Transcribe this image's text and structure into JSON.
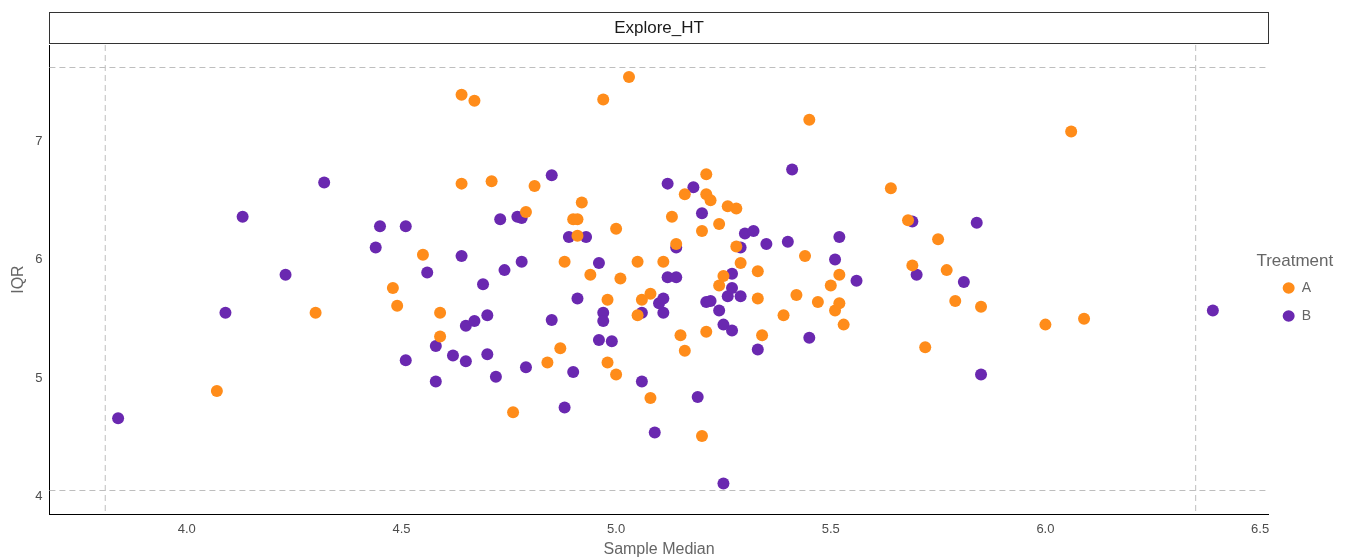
{
  "chart_data": {
    "type": "scatter",
    "title": "Explore_HT",
    "xlabel": "Sample Median",
    "ylabel": "IQR",
    "legend_title": "Treatment",
    "legend": "right",
    "grid": false,
    "marker": "circle",
    "xlim": [
      3.68,
      6.52
    ],
    "xticks": [
      {
        "value": 4,
        "label": "4.0"
      },
      4.5,
      {
        "value": 5,
        "label": "5.0"
      },
      5.5,
      {
        "value": 6,
        "label": "6.0"
      },
      6.5
    ],
    "ylim": [
      3.85,
      7.81
    ],
    "yticks": [
      4,
      5,
      6,
      7
    ],
    "ref_lines": [
      {
        "axis": "x",
        "value": 3.81,
        "line_style": "dashed",
        "color": "#bebebe"
      },
      {
        "axis": "x",
        "value": 6.35,
        "line_style": "dashed",
        "color": "#bebebe"
      },
      {
        "axis": "y",
        "value": 7.62,
        "line_style": "dashed",
        "color": "#bebebe"
      },
      {
        "axis": "y",
        "value": 4.05,
        "line_style": "dashed",
        "color": "#bebebe"
      }
    ],
    "series": [
      {
        "name": "A",
        "color": "#ff8c1a",
        "x": [
          4.07,
          4.3,
          4.48,
          4.49,
          4.55,
          4.59,
          4.59,
          4.64,
          4.67,
          4.64,
          4.71,
          4.79,
          4.81,
          4.76,
          4.84,
          4.87,
          4.88,
          4.9,
          4.92,
          4.91,
          4.91,
          4.94,
          4.97,
          5.03,
          4.98,
          4.98,
          5.0,
          5.0,
          5.01,
          5.05,
          5.05,
          5.06,
          5.08,
          5.08,
          5.11,
          5.13,
          5.14,
          5.15,
          5.16,
          5.16,
          5.2,
          5.21,
          5.21,
          5.22,
          5.2,
          5.21,
          5.24,
          5.24,
          5.25,
          5.26,
          5.28,
          5.28,
          5.29,
          5.33,
          5.33,
          5.34,
          5.45,
          5.42,
          5.39,
          5.51,
          5.5,
          5.52,
          5.53,
          5.52,
          5.47,
          5.44,
          5.64,
          5.68,
          5.69,
          5.75,
          5.77,
          5.79,
          5.72,
          5.85,
          6.0,
          6.09,
          6.06
        ],
        "values": [
          4.89,
          5.55,
          5.76,
          5.61,
          6.04,
          5.55,
          5.35,
          7.39,
          7.34,
          6.64,
          6.66,
          6.4,
          6.62,
          4.71,
          5.13,
          5.25,
          5.98,
          6.34,
          6.48,
          6.2,
          6.34,
          5.87,
          7.35,
          7.54,
          5.66,
          5.13,
          6.26,
          5.03,
          5.84,
          5.98,
          5.53,
          5.66,
          5.71,
          4.83,
          5.98,
          6.36,
          6.13,
          5.36,
          5.23,
          6.55,
          6.24,
          6.55,
          6.72,
          6.5,
          4.51,
          5.39,
          5.78,
          6.3,
          5.86,
          6.45,
          6.43,
          6.11,
          5.97,
          5.67,
          5.9,
          5.36,
          7.18,
          5.7,
          5.53,
          5.57,
          5.78,
          5.63,
          5.45,
          5.87,
          5.64,
          6.03,
          6.6,
          6.33,
          5.95,
          6.17,
          5.91,
          5.65,
          5.26,
          5.6,
          5.45,
          5.5,
          7.08
        ]
      },
      {
        "name": "B",
        "color": "#6a28b0",
        "x": [
          3.84,
          4.09,
          4.13,
          4.23,
          4.32,
          4.44,
          4.45,
          4.51,
          4.51,
          4.56,
          4.58,
          4.58,
          4.62,
          4.65,
          4.64,
          4.65,
          4.67,
          4.69,
          4.7,
          4.7,
          4.72,
          4.73,
          4.74,
          4.77,
          4.78,
          4.78,
          4.79,
          4.85,
          4.85,
          4.88,
          4.89,
          4.93,
          4.96,
          4.91,
          4.9,
          4.96,
          4.99,
          4.97,
          4.97,
          5.06,
          5.06,
          5.09,
          5.11,
          5.1,
          5.11,
          5.12,
          5.14,
          5.14,
          5.12,
          5.18,
          5.2,
          5.19,
          5.21,
          5.22,
          5.24,
          5.25,
          5.27,
          5.26,
          5.27,
          5.27,
          5.29,
          5.29,
          5.3,
          5.32,
          5.35,
          5.4,
          5.41,
          5.33,
          5.25,
          5.45,
          5.52,
          5.51,
          5.56,
          5.69,
          5.7,
          5.81,
          5.84,
          5.85,
          6.39
        ],
        "values": [
          4.66,
          5.55,
          6.36,
          5.87,
          6.65,
          6.1,
          6.28,
          6.28,
          5.15,
          5.89,
          4.97,
          5.27,
          5.19,
          5.14,
          6.03,
          5.44,
          5.48,
          5.79,
          5.53,
          5.2,
          5.01,
          6.34,
          5.91,
          6.36,
          6.35,
          5.98,
          5.09,
          5.49,
          6.71,
          4.75,
          6.19,
          6.19,
          5.97,
          5.67,
          5.05,
          5.32,
          5.31,
          5.55,
          5.48,
          5.55,
          4.97,
          4.54,
          5.55,
          5.63,
          5.67,
          5.85,
          5.85,
          6.1,
          6.64,
          6.61,
          6.39,
          4.84,
          5.64,
          5.65,
          5.57,
          5.45,
          5.4,
          5.69,
          5.76,
          5.88,
          5.69,
          6.1,
          6.22,
          6.24,
          6.13,
          6.15,
          6.76,
          5.24,
          4.11,
          5.34,
          6.19,
          6.0,
          5.82,
          6.32,
          5.87,
          5.81,
          6.31,
          5.03,
          5.57
        ]
      }
    ]
  }
}
